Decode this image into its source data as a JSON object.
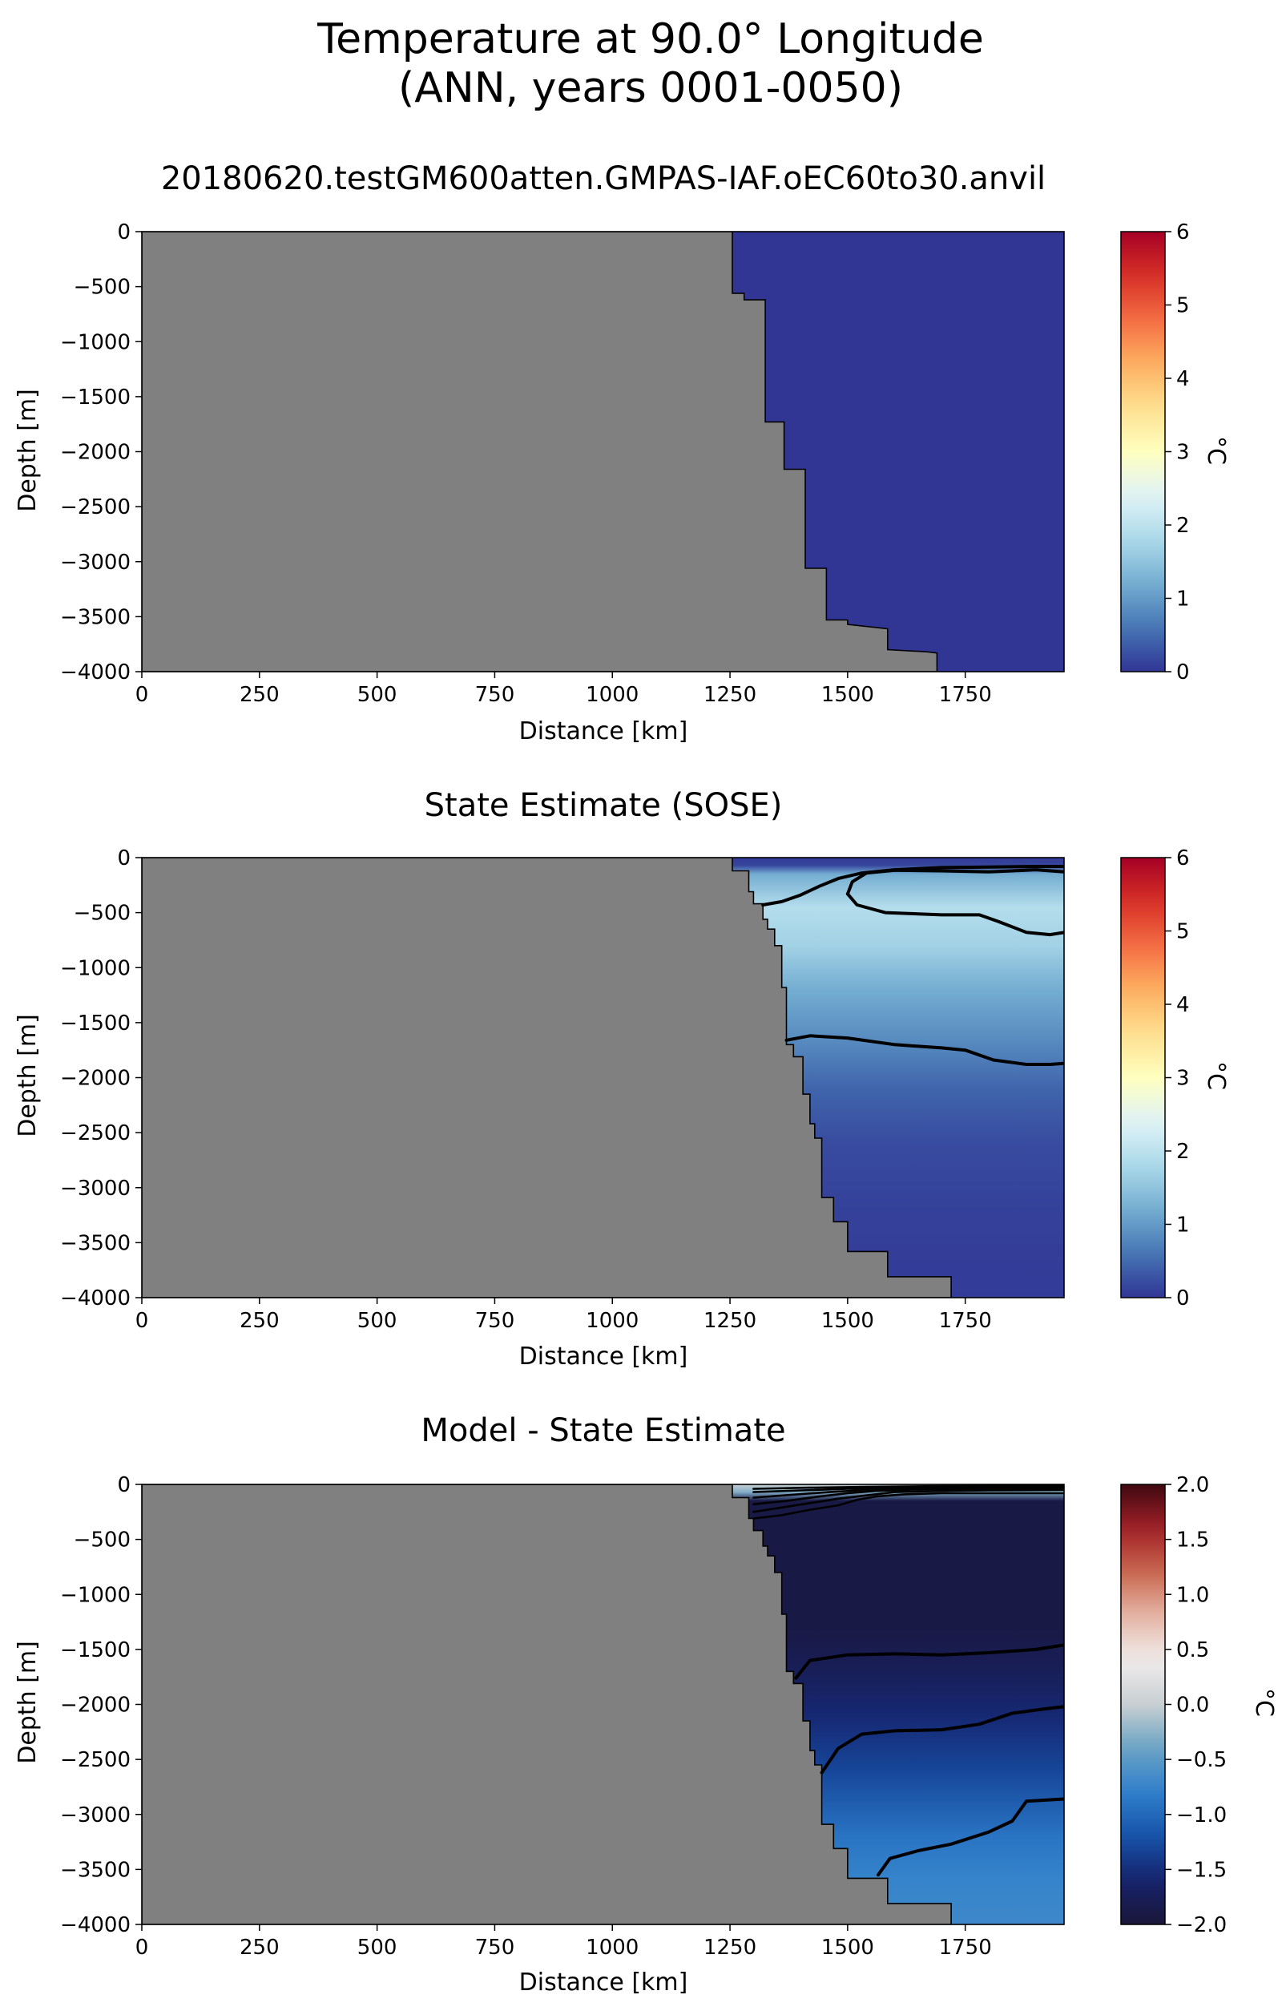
{
  "figure": {
    "title_line1": "Temperature at 90.0° Longitude",
    "title_line2": "(ANN, years 0001-0050)"
  },
  "colors": {
    "land": "#808080",
    "contour": "#000000",
    "cmap_temperature": [
      "#313695",
      "#4575b4",
      "#74add1",
      "#abd9e9",
      "#e0f3f8",
      "#ffffbf",
      "#fee090",
      "#fdae61",
      "#f46d43",
      "#d73027",
      "#a50026"
    ],
    "cmap_difference": [
      "#1a1638",
      "#16226b",
      "#1652a8",
      "#2f7fcc",
      "#6aa3c4",
      "#c8cfd2",
      "#f1eded",
      "#e5b5a6",
      "#c9684f",
      "#a12027",
      "#3f0810"
    ]
  },
  "chart_data": [
    {
      "type": "heatmap",
      "title": "20180620.testGM600atten.GMPAS-IAF.oEC60to30.anvil",
      "xlabel": "Distance [km]",
      "ylabel": "Depth [m]",
      "xlim": [
        0,
        1960
      ],
      "ylim": [
        -4000,
        0
      ],
      "xticks": [
        "0",
        "250",
        "500",
        "750",
        "1000",
        "1250",
        "1500",
        "1750"
      ],
      "yticks": [
        "0",
        "−500",
        "−1000",
        "−1500",
        "−2000",
        "−2500",
        "−3000",
        "−3500",
        "−4000"
      ],
      "colorbar": {
        "label": "°C",
        "min": 0,
        "max": 6,
        "ticks": [
          "0",
          "1",
          "2",
          "3",
          "4",
          "5",
          "6"
        ],
        "cmap": "RdYlBu_r"
      },
      "field_value": 0,
      "bathymetry": [
        [
          1255,
          0
        ],
        [
          1255,
          -560
        ],
        [
          1280,
          -560
        ],
        [
          1280,
          -620
        ],
        [
          1325,
          -620
        ],
        [
          1325,
          -1730
        ],
        [
          1365,
          -1730
        ],
        [
          1365,
          -2160
        ],
        [
          1410,
          -2160
        ],
        [
          1410,
          -3060
        ],
        [
          1455,
          -3060
        ],
        [
          1455,
          -3530
        ],
        [
          1500,
          -3530
        ],
        [
          1500,
          -3570
        ],
        [
          1585,
          -3610
        ],
        [
          1585,
          -3800
        ],
        [
          1670,
          -3820
        ],
        [
          1690,
          -3830
        ],
        [
          1690,
          -4000
        ]
      ],
      "contours": []
    },
    {
      "type": "heatmap",
      "title": "State Estimate (SOSE)",
      "xlabel": "Distance [km]",
      "ylabel": "Depth [m]",
      "xlim": [
        0,
        1960
      ],
      "ylim": [
        -4000,
        0
      ],
      "xticks": [
        "0",
        "250",
        "500",
        "750",
        "1000",
        "1250",
        "1500",
        "1750"
      ],
      "yticks": [
        "0",
        "−500",
        "−1000",
        "−1500",
        "−2000",
        "−2500",
        "−3000",
        "−3500",
        "−4000"
      ],
      "colorbar": {
        "label": "°C",
        "min": 0,
        "max": 6,
        "ticks": [
          "0",
          "1",
          "2",
          "3",
          "4",
          "5",
          "6"
        ],
        "cmap": "RdYlBu_r"
      },
      "field_profile": [
        [
          0,
          0.05
        ],
        [
          -70,
          0.15
        ],
        [
          -150,
          1.2
        ],
        [
          -450,
          1.9
        ],
        [
          -800,
          1.7
        ],
        [
          -1200,
          1.2
        ],
        [
          -1700,
          0.8
        ],
        [
          -2100,
          0.45
        ],
        [
          -2600,
          0.2
        ],
        [
          -3200,
          0.1
        ],
        [
          -4000,
          0.05
        ]
      ],
      "bathymetry": [
        [
          1255,
          0
        ],
        [
          1255,
          -120
        ],
        [
          1290,
          -120
        ],
        [
          1290,
          -310
        ],
        [
          1300,
          -310
        ],
        [
          1300,
          -420
        ],
        [
          1320,
          -420
        ],
        [
          1320,
          -560
        ],
        [
          1330,
          -560
        ],
        [
          1330,
          -650
        ],
        [
          1345,
          -650
        ],
        [
          1345,
          -800
        ],
        [
          1360,
          -800
        ],
        [
          1360,
          -1180
        ],
        [
          1370,
          -1180
        ],
        [
          1370,
          -1700
        ],
        [
          1385,
          -1700
        ],
        [
          1385,
          -1810
        ],
        [
          1405,
          -1810
        ],
        [
          1405,
          -2150
        ],
        [
          1420,
          -2150
        ],
        [
          1420,
          -2420
        ],
        [
          1430,
          -2420
        ],
        [
          1430,
          -2550
        ],
        [
          1445,
          -2550
        ],
        [
          1445,
          -3090
        ],
        [
          1470,
          -3090
        ],
        [
          1470,
          -3310
        ],
        [
          1500,
          -3310
        ],
        [
          1500,
          -3580
        ],
        [
          1585,
          -3580
        ],
        [
          1585,
          -3810
        ],
        [
          1720,
          -3810
        ],
        [
          1720,
          -4000
        ]
      ],
      "contours": [
        {
          "level": 0.5,
          "points": [
            [
              1320,
              -430
            ],
            [
              1360,
              -400
            ],
            [
              1400,
              -340
            ],
            [
              1440,
              -260
            ],
            [
              1480,
              -190
            ],
            [
              1530,
              -140
            ],
            [
              1600,
              -110
            ],
            [
              1700,
              -90
            ],
            [
              1800,
              -85
            ],
            [
              1900,
              -80
            ],
            [
              1960,
              -80
            ]
          ]
        },
        {
          "level": 1.5,
          "points": [
            [
              1500,
              -330
            ],
            [
              1510,
              -220
            ],
            [
              1540,
              -140
            ],
            [
              1600,
              -115
            ],
            [
              1700,
              -120
            ],
            [
              1800,
              -130
            ],
            [
              1850,
              -120
            ],
            [
              1900,
              -110
            ],
            [
              1960,
              -130
            ]
          ]
        },
        {
          "level": 1.5,
          "points": [
            [
              1500,
              -330
            ],
            [
              1520,
              -430
            ],
            [
              1580,
              -500
            ],
            [
              1700,
              -520
            ],
            [
              1780,
              -520
            ],
            [
              1820,
              -580
            ],
            [
              1880,
              -680
            ],
            [
              1930,
              -700
            ],
            [
              1960,
              -680
            ]
          ]
        },
        {
          "level": 1.0,
          "points": [
            [
              1370,
              -1660
            ],
            [
              1420,
              -1620
            ],
            [
              1500,
              -1640
            ],
            [
              1600,
              -1700
            ],
            [
              1700,
              -1730
            ],
            [
              1750,
              -1750
            ],
            [
              1810,
              -1840
            ],
            [
              1880,
              -1880
            ],
            [
              1930,
              -1880
            ],
            [
              1960,
              -1870
            ]
          ]
        }
      ]
    },
    {
      "type": "heatmap",
      "title": "Model - State Estimate",
      "xlabel": "Distance [km]",
      "ylabel": "Depth [m]",
      "xlim": [
        0,
        1960
      ],
      "ylim": [
        -4000,
        0
      ],
      "xticks": [
        "0",
        "250",
        "500",
        "750",
        "1000",
        "1250",
        "1500",
        "1750"
      ],
      "yticks": [
        "0",
        "−500",
        "−1000",
        "−1500",
        "−2000",
        "−2500",
        "−3000",
        "−3500",
        "−4000"
      ],
      "colorbar": {
        "label": "°C",
        "min": -2.0,
        "max": 2.0,
        "ticks": [
          "−2.0",
          "−1.5",
          "−1.0",
          "−0.5",
          "0.0",
          "0.5",
          "1.0",
          "1.5",
          "2.0"
        ],
        "cmap": "RdBu_r"
      },
      "field_profile": [
        [
          0,
          0.0
        ],
        [
          -70,
          -0.3
        ],
        [
          -150,
          -1.9
        ],
        [
          -1300,
          -1.9
        ],
        [
          -1700,
          -1.75
        ],
        [
          -2100,
          -1.55
        ],
        [
          -2600,
          -1.3
        ],
        [
          -3200,
          -0.9
        ],
        [
          -3600,
          -0.75
        ],
        [
          -4000,
          -0.7
        ]
      ],
      "bathymetry": [
        [
          1255,
          0
        ],
        [
          1255,
          -120
        ],
        [
          1290,
          -120
        ],
        [
          1290,
          -310
        ],
        [
          1300,
          -310
        ],
        [
          1300,
          -420
        ],
        [
          1320,
          -420
        ],
        [
          1320,
          -560
        ],
        [
          1330,
          -560
        ],
        [
          1330,
          -650
        ],
        [
          1345,
          -650
        ],
        [
          1345,
          -800
        ],
        [
          1360,
          -800
        ],
        [
          1360,
          -1180
        ],
        [
          1370,
          -1180
        ],
        [
          1370,
          -1700
        ],
        [
          1385,
          -1700
        ],
        [
          1385,
          -1810
        ],
        [
          1405,
          -1810
        ],
        [
          1405,
          -2150
        ],
        [
          1420,
          -2150
        ],
        [
          1420,
          -2420
        ],
        [
          1430,
          -2420
        ],
        [
          1430,
          -2550
        ],
        [
          1445,
          -2550
        ],
        [
          1445,
          -3090
        ],
        [
          1470,
          -3090
        ],
        [
          1470,
          -3310
        ],
        [
          1500,
          -3310
        ],
        [
          1500,
          -3580
        ],
        [
          1585,
          -3580
        ],
        [
          1585,
          -3810
        ],
        [
          1720,
          -3810
        ],
        [
          1720,
          -4000
        ]
      ],
      "contours": [
        {
          "level": -1.75,
          "points": [
            [
              1390,
              -1760
            ],
            [
              1420,
              -1600
            ],
            [
              1500,
              -1550
            ],
            [
              1600,
              -1540
            ],
            [
              1700,
              -1550
            ],
            [
              1800,
              -1530
            ],
            [
              1900,
              -1500
            ],
            [
              1960,
              -1460
            ]
          ]
        },
        {
          "level": -1.5,
          "points": [
            [
              1445,
              -2620
            ],
            [
              1480,
              -2400
            ],
            [
              1530,
              -2270
            ],
            [
              1600,
              -2240
            ],
            [
              1700,
              -2230
            ],
            [
              1780,
              -2180
            ],
            [
              1850,
              -2080
            ],
            [
              1920,
              -2040
            ],
            [
              1960,
              -2020
            ]
          ]
        },
        {
          "level": -1.0,
          "points": [
            [
              1565,
              -3550
            ],
            [
              1590,
              -3400
            ],
            [
              1650,
              -3330
            ],
            [
              1720,
              -3270
            ],
            [
              1800,
              -3160
            ],
            [
              1850,
              -3060
            ],
            [
              1880,
              -2880
            ],
            [
              1960,
              -2860
            ]
          ]
        },
        {
          "level": -0.5,
          "points": [
            [
              1300,
              -310
            ],
            [
              1360,
              -280
            ],
            [
              1420,
              -230
            ],
            [
              1480,
              -190
            ],
            [
              1520,
              -140
            ],
            [
              1560,
              -110
            ],
            [
              1620,
              -90
            ],
            [
              1700,
              -80
            ],
            [
              1800,
              -80
            ],
            [
              1960,
              -80
            ]
          ]
        },
        {
          "level": -0.25,
          "points": [
            [
              1300,
              -250
            ],
            [
              1360,
              -210
            ],
            [
              1420,
              -170
            ],
            [
              1480,
              -130
            ],
            [
              1540,
              -100
            ],
            [
              1600,
              -70
            ],
            [
              1700,
              -60
            ],
            [
              1800,
              -55
            ],
            [
              1960,
              -50
            ]
          ]
        },
        {
          "level": 0.0,
          "points": [
            [
              1300,
              -180
            ],
            [
              1370,
              -150
            ],
            [
              1440,
              -110
            ],
            [
              1500,
              -80
            ],
            [
              1560,
              -60
            ],
            [
              1650,
              -45
            ],
            [
              1800,
              -40
            ],
            [
              1960,
              -35
            ]
          ]
        },
        {
          "level": 0.25,
          "points": [
            [
              1300,
              -120
            ],
            [
              1380,
              -95
            ],
            [
              1460,
              -70
            ],
            [
              1540,
              -50
            ],
            [
              1650,
              -35
            ],
            [
              1800,
              -28
            ],
            [
              1960,
              -25
            ]
          ]
        },
        {
          "level": 0.5,
          "points": [
            [
              1300,
              -70
            ],
            [
              1400,
              -55
            ],
            [
              1500,
              -40
            ],
            [
              1620,
              -28
            ],
            [
              1800,
              -20
            ],
            [
              1960,
              -15
            ]
          ]
        },
        {
          "level": 0.75,
          "points": [
            [
              1300,
              -40
            ],
            [
              1420,
              -30
            ],
            [
              1540,
              -22
            ],
            [
              1700,
              -15
            ],
            [
              1960,
              -10
            ]
          ]
        }
      ]
    }
  ]
}
